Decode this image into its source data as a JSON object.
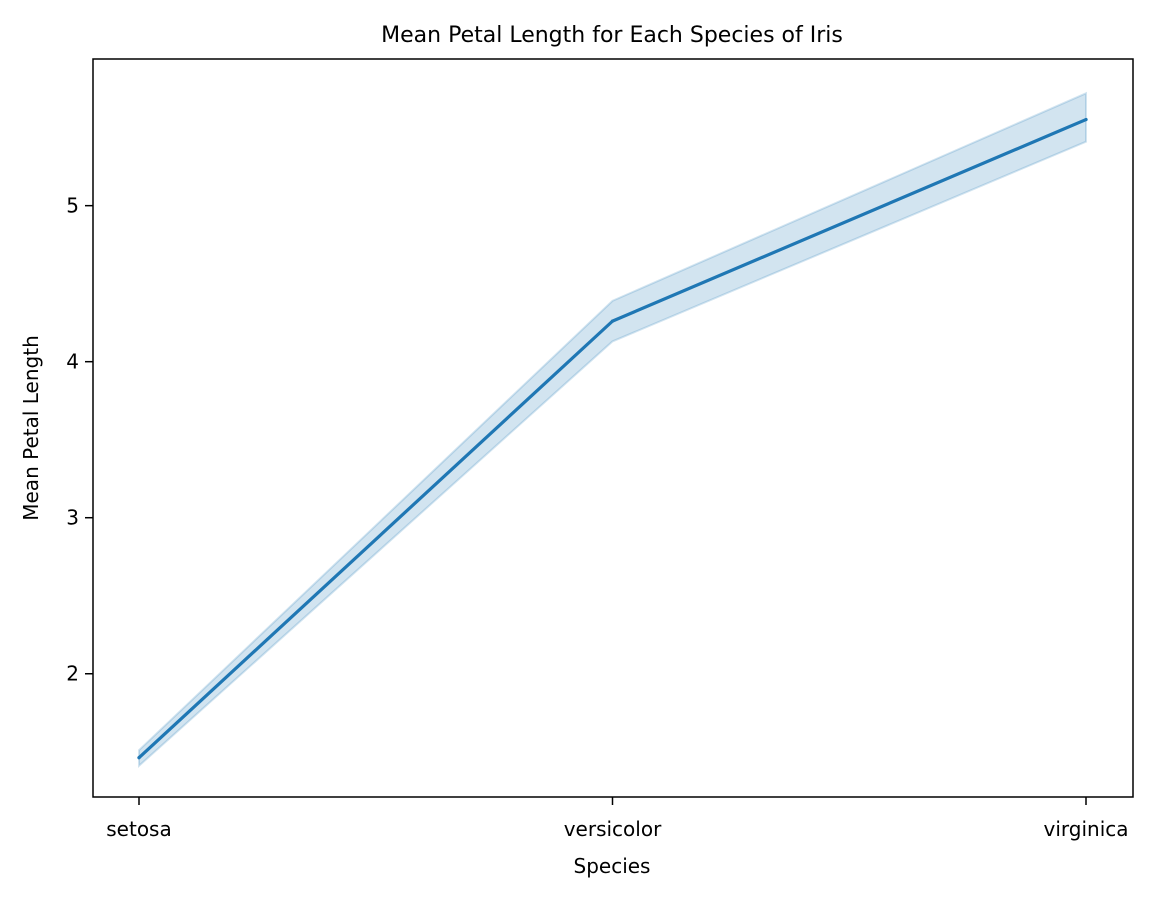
{
  "chart_data": {
    "type": "line",
    "title": "Mean Petal Length for Each Species of Iris",
    "xlabel": "Species",
    "ylabel": "Mean Petal Length",
    "categories": [
      "setosa",
      "versicolor",
      "virginica"
    ],
    "series": [
      {
        "values": [
          1.462,
          4.26,
          5.552
        ],
        "ci_lower": [
          1.41,
          4.13,
          5.41
        ],
        "ci_upper": [
          1.51,
          4.39,
          5.72
        ]
      }
    ],
    "ylim": [
      1.21,
      5.94
    ],
    "yticks": [
      2,
      3,
      4,
      5
    ],
    "grid": false,
    "legend": "none",
    "colors": {
      "line": "#1f77b4",
      "band": "#1f77b4"
    }
  }
}
